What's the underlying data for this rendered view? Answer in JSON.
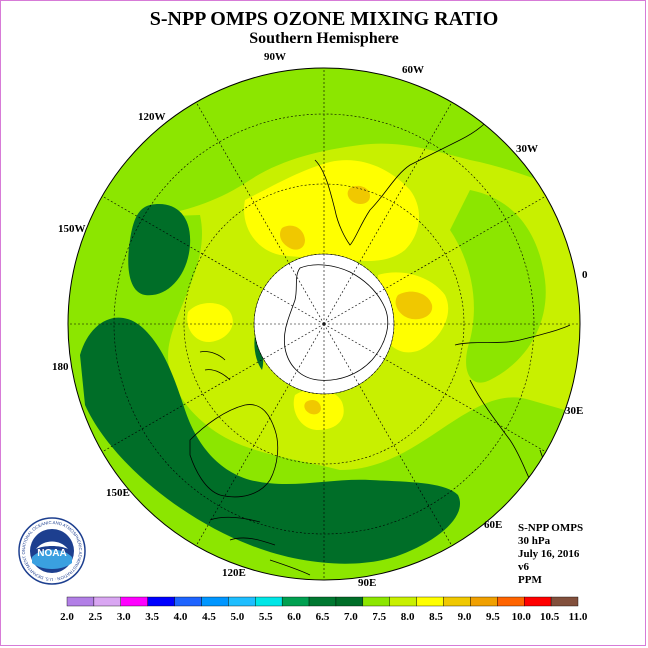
{
  "title": "S-NPP OMPS OZONE MIXING RATIO",
  "subtitle": "Southern Hemisphere",
  "longitude_labels": [
    "90W",
    "60W",
    "30W",
    "0",
    "30E",
    "60E",
    "90E",
    "120E",
    "150E",
    "180",
    "150W",
    "120W"
  ],
  "info": {
    "instrument": "S-NPP OMPS",
    "level": "30 hPa",
    "date": "July 16, 2016",
    "version": "v6",
    "units": "PPM"
  },
  "logo": {
    "text": "NOAA",
    "ring_text": "NATIONAL OCEANIC AND ATMOSPHERIC ADMINISTRATION · U.S. DEPARTMENT OF COMMERCE"
  },
  "colorbar": {
    "ticks": [
      "2.0",
      "2.5",
      "3.0",
      "3.5",
      "4.0",
      "4.5",
      "5.0",
      "5.5",
      "6.0",
      "6.5",
      "7.0",
      "7.5",
      "8.0",
      "8.5",
      "9.0",
      "9.5",
      "10.0",
      "10.5",
      "11.0"
    ],
    "colors": [
      "#b27fe6",
      "#d9a6f2",
      "#ff00ff",
      "#0000ff",
      "#1e64ff",
      "#0096ff",
      "#1ebeff",
      "#00e6e6",
      "#00a050",
      "#007830",
      "#006e28",
      "#8ce600",
      "#c8f000",
      "#ffff00",
      "#f0c800",
      "#f0a000",
      "#ff6400",
      "#ff0000",
      "#82503c"
    ]
  },
  "map_colors": {
    "level_7_0": "#006e28",
    "level_7_5": "#8ce600",
    "level_8_0": "#c8f000",
    "level_8_5": "#ffff00",
    "level_9_0": "#f0c800",
    "level_9_5": "#f0a000",
    "polar_night": "#ffffff"
  }
}
